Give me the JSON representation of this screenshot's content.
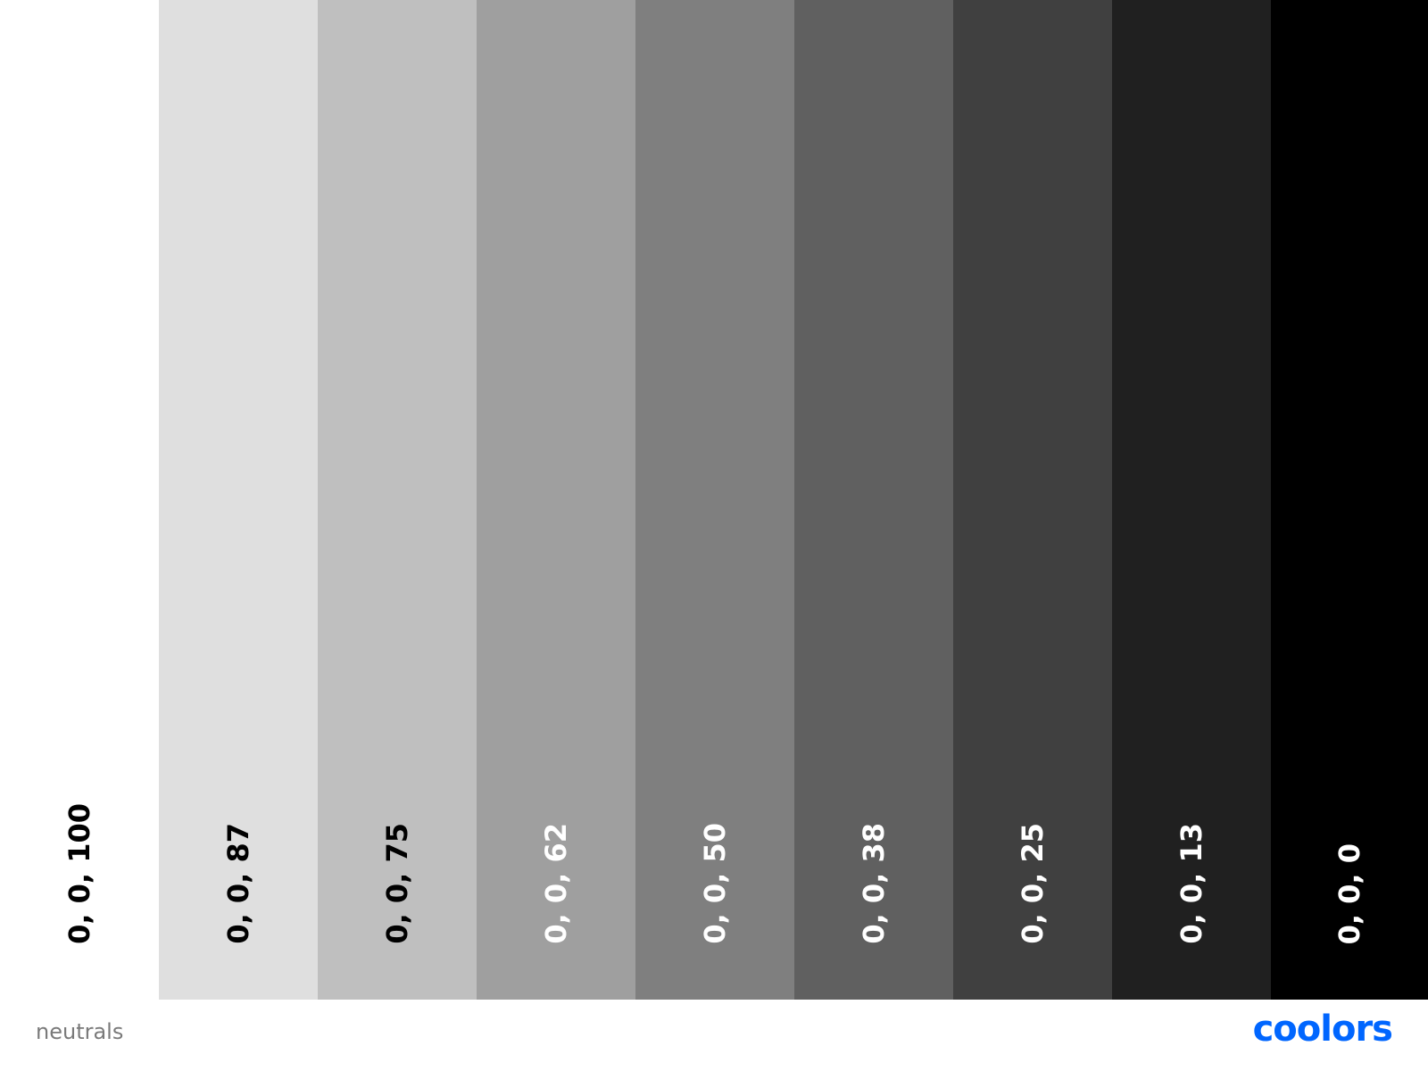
{
  "palette": {
    "swatches": [
      {
        "label": "0, 0, 100",
        "color": "#ffffff",
        "text_color": "#000000"
      },
      {
        "label": "0, 0, 87",
        "color": "#dfdfdf",
        "text_color": "#000000"
      },
      {
        "label": "0, 0, 75",
        "color": "#bfbfbf",
        "text_color": "#000000"
      },
      {
        "label": "0, 0, 62",
        "color": "#9f9f9f",
        "text_color": "#ffffff"
      },
      {
        "label": "0, 0, 50",
        "color": "#7f7f7f",
        "text_color": "#ffffff"
      },
      {
        "label": "0, 0, 38",
        "color": "#606060",
        "text_color": "#ffffff"
      },
      {
        "label": "0, 0, 25",
        "color": "#404040",
        "text_color": "#ffffff"
      },
      {
        "label": "0, 0, 13",
        "color": "#202020",
        "text_color": "#ffffff"
      },
      {
        "label": "0, 0, 0",
        "color": "#000000",
        "text_color": "#ffffff"
      }
    ]
  },
  "footer": {
    "palette_name": "neutrals",
    "logo_text": "coolors",
    "logo_color": "#0066ff"
  }
}
